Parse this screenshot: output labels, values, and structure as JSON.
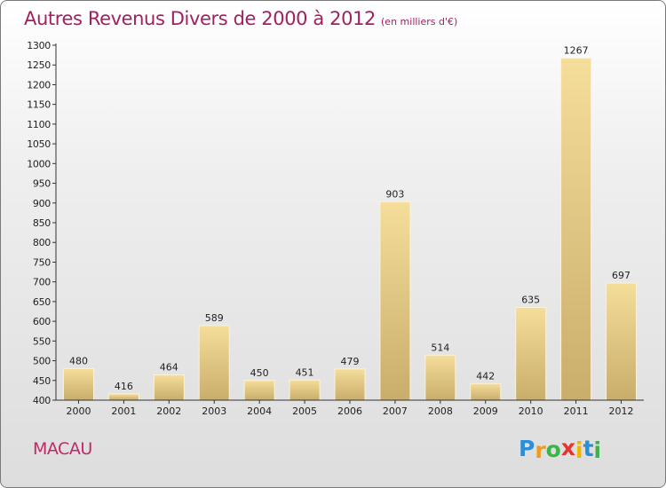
{
  "title": "Autres Revenus Divers de 2000 à 2012",
  "subtitle": "(en milliers d'€)",
  "location": "MACAU",
  "brand": {
    "letters": [
      "P",
      "r",
      "o",
      "x",
      "i",
      "t",
      "i"
    ],
    "colors": [
      "#2b8fd6",
      "#f39a1a",
      "#3db34a",
      "#e8332e",
      "#f1b400",
      "#2b8fd6",
      "#3db34a"
    ]
  },
  "chart_data": {
    "type": "bar",
    "title": "Autres Revenus Divers de 2000 à 2012",
    "subtitle": "(en milliers d'€)",
    "categories": [
      "2000",
      "2001",
      "2002",
      "2003",
      "2004",
      "2005",
      "2006",
      "2007",
      "2008",
      "2009",
      "2010",
      "2011",
      "2012"
    ],
    "values": [
      480,
      416,
      464,
      589,
      450,
      451,
      479,
      903,
      514,
      442,
      635,
      1267,
      697
    ],
    "data_labels": [
      "480",
      "416",
      "464",
      "589",
      "450",
      "451",
      "479",
      "903",
      "514",
      "442",
      "635",
      "1267",
      "697"
    ],
    "ylim": [
      400,
      1300
    ],
    "yticks": [
      "400",
      "450",
      "500",
      "550",
      "600",
      "650",
      "700",
      "750",
      "800",
      "850",
      "900",
      "950",
      "1000",
      "1050",
      "1100",
      "1150",
      "1200",
      "1250",
      "1300"
    ],
    "xlabel": "",
    "ylabel": "",
    "grid": false,
    "colors": {
      "bar_light": "#f5dd9a",
      "bar_dark": "#c9ad6b",
      "axis": "#333333",
      "text": "#222222"
    }
  }
}
